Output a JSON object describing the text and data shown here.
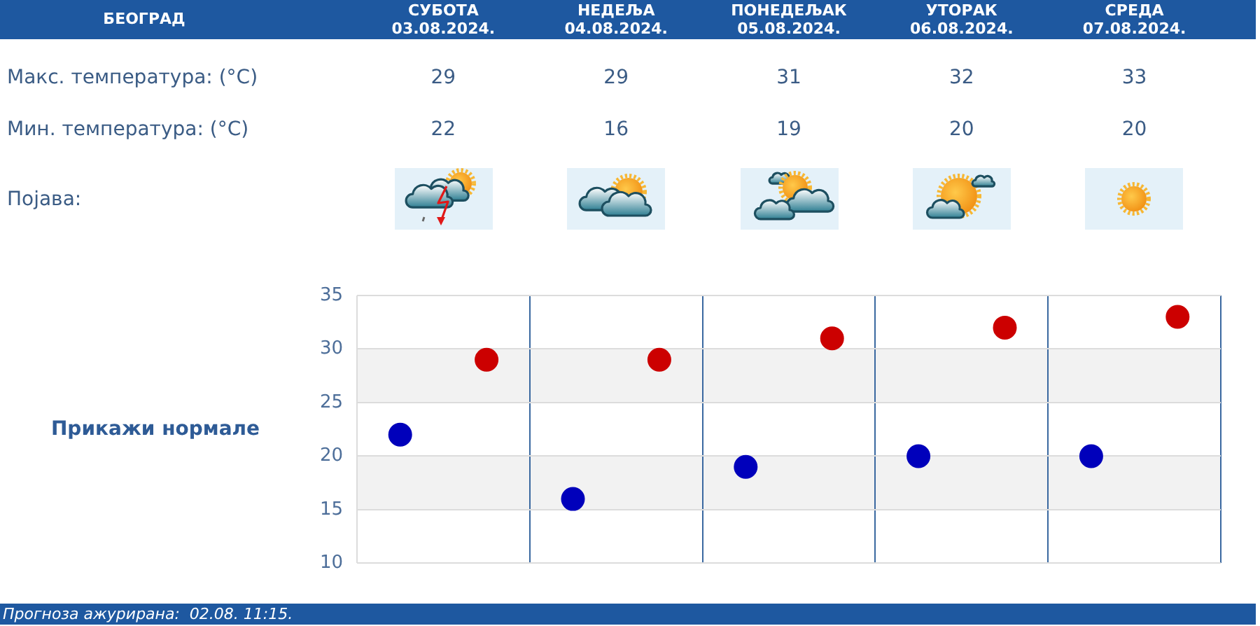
{
  "chart_data": {
    "type": "scatter",
    "title": "БЕОГРАД",
    "categories": [
      null,
      null,
      null,
      null,
      null
    ],
    "series": [
      {
        "color": "#cc0000",
        "values": [
          29,
          29,
          31,
          32,
          33
        ]
      },
      {
        "color": "#0000bb",
        "values": [
          22,
          16,
          19,
          20,
          20
        ]
      }
    ],
    "ylim": [
      10,
      35
    ],
    "yticks": [
      10,
      15,
      20,
      25,
      30,
      35
    ],
    "grid": true,
    "legend": false,
    "marker": "circle",
    "data_labels": true,
    "bands": [
      {
        "axis": "y",
        "from": 15,
        "to": 20,
        "color": "#f2f2f2"
      },
      {
        "axis": "y",
        "from": 25,
        "to": 30,
        "color": "#f2f2f2"
      }
    ],
    "annotations": [
      "СУБОТА 03.08.2024.",
      "НЕДЕЉА 04.08.2024.",
      "ПОНЕДЕЉАК 05.08.2024.",
      "УТОРАК 06.08.2024.",
      "СРЕДА 07.08.2024.",
      "Макс. температура: (°C)",
      "Мин. температура: (°C)",
      "Појава:",
      "Прикажи нормале",
      "Прогноза ажурирана:  02.08. 11:15."
    ]
  }
}
